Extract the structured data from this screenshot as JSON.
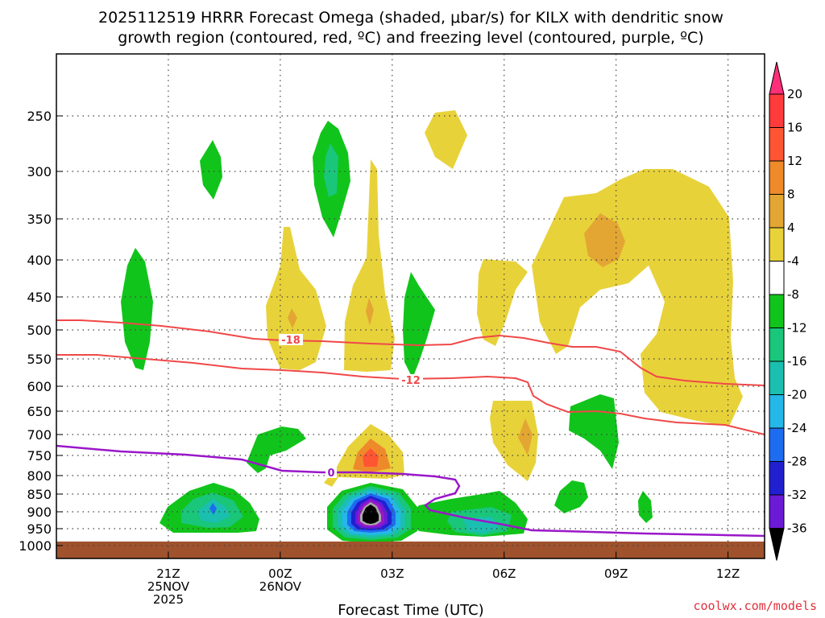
{
  "chart_data": {
    "type": "contour",
    "title_line1": "2025112519 HRRR Forecast Omega (shaded, μbar/s) for KILX with dendritic snow",
    "title_line2": "growth region (contoured, red, ºC) and freezing level (contoured, purple, ºC)",
    "xlabel": "Forecast Time (UTC)",
    "credit": "coolwx.com/models",
    "pressure_ticks": [
      "250",
      "300",
      "350",
      "400",
      "450",
      "500",
      "550",
      "600",
      "650",
      "700",
      "750",
      "800",
      "850",
      "900",
      "950",
      "1000"
    ],
    "pressure_values": [
      250,
      300,
      350,
      400,
      450,
      500,
      550,
      600,
      650,
      700,
      750,
      800,
      850,
      900,
      950,
      1000
    ],
    "time_ticks": [
      {
        "hour": 21,
        "lines": [
          "21Z",
          "25NOV",
          "2025"
        ]
      },
      {
        "hour": 24,
        "lines": [
          "00Z",
          "26NOV"
        ]
      },
      {
        "hour": 27,
        "lines": [
          "03Z"
        ]
      },
      {
        "hour": 30,
        "lines": [
          "06Z"
        ]
      },
      {
        "hour": 33,
        "lines": [
          "09Z"
        ]
      },
      {
        "hour": 36,
        "lines": [
          "12Z"
        ]
      }
    ],
    "x_range_hours": [
      18.0,
      36.98
    ],
    "colorbar": {
      "labels": [
        "20",
        "16",
        "12",
        "8",
        "4",
        "-4",
        "-8",
        "-12",
        "-16",
        "-20",
        "-24",
        "-28",
        "-32",
        "-36"
      ],
      "colors": [
        "#ff2e78",
        "#ff3b3b",
        "#ff5533",
        "#ee8a2a",
        "#e3a633",
        "#e8d23a",
        "#ffffff",
        "#11c41b",
        "#19c67a",
        "#1bbfb0",
        "#25b7e8",
        "#1e6cf0",
        "#2020d0",
        "#6b1ad6",
        "#9a17c9",
        "#a8a8a8",
        "#000000"
      ],
      "units": "μbar/s"
    },
    "contour_labels": {
      "dgz_top": "-18",
      "dgz_bottom": "-12",
      "freezing": "0"
    },
    "colors": {
      "dgz": "#f04848",
      "freezing": "#9a17c9",
      "ground": "#a0522d",
      "grid": "#444444"
    }
  }
}
